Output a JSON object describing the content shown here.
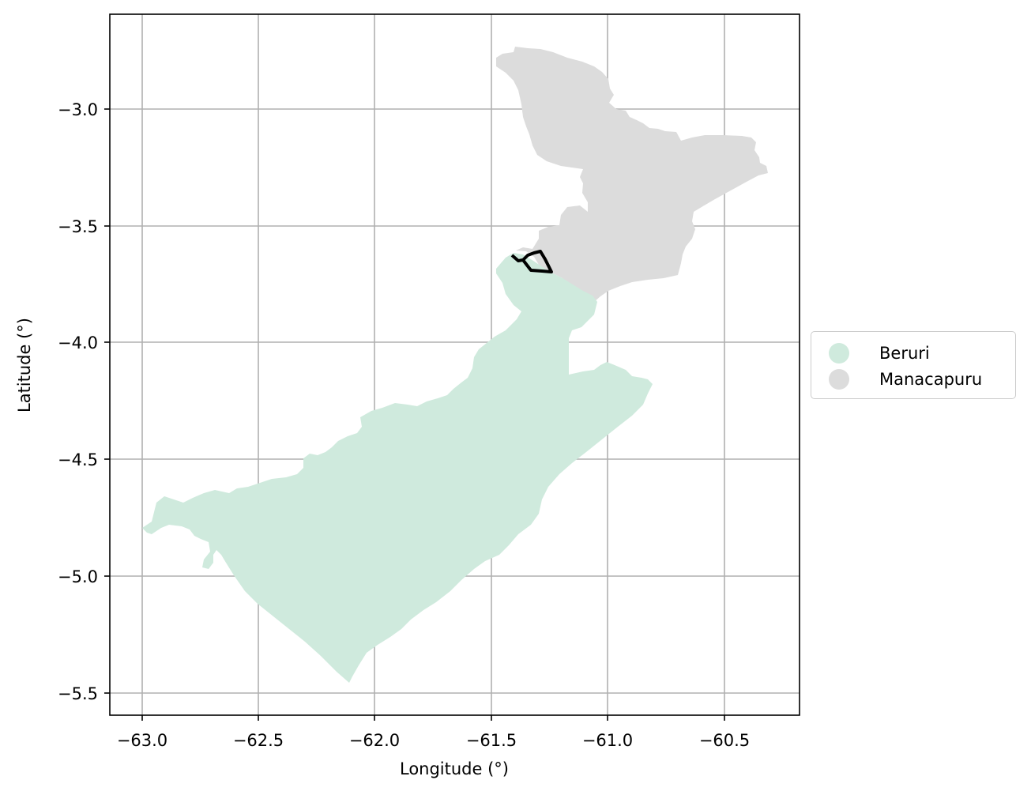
{
  "map": {
    "xlabel": "Longitude (°)",
    "ylabel": "Latitude (°)",
    "x_ticks": [
      "−63.0",
      "−62.5",
      "−62.0",
      "−61.5",
      "−61.0",
      "−60.5"
    ],
    "y_ticks": [
      "−3.0",
      "−3.5",
      "−4.0",
      "−4.5",
      "−5.0",
      "−5.5"
    ],
    "xlim": [
      -63.14,
      -60.18
    ],
    "ylim": [
      -5.59,
      -2.59
    ],
    "grid": true
  },
  "legend": {
    "placement": "center-right outside plot",
    "items": [
      {
        "label": "Beruri",
        "color": "#cfeadd"
      },
      {
        "label": "Manacapuru",
        "color": "#dcdcdc"
      }
    ]
  },
  "regions": [
    {
      "name": "Beruri",
      "color": "#cfeadd"
    },
    {
      "name": "Manacapuru",
      "color": "#dcdcdc"
    }
  ],
  "highlight_outline": {
    "color": "#000000"
  }
}
